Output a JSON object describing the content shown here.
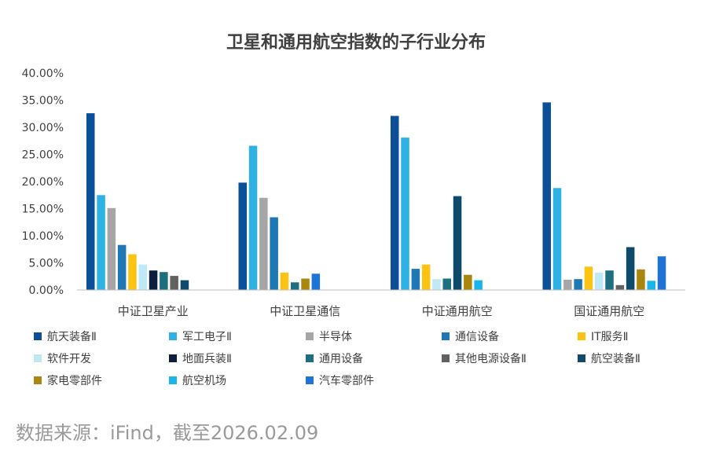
{
  "chart_data": {
    "type": "bar",
    "title": "卫星和通用航空指数的子行业分布",
    "ylim": [
      0,
      40
    ],
    "yticks": [
      "0.00%",
      "5.00%",
      "10.00%",
      "15.00%",
      "20.00%",
      "25.00%",
      "30.00%",
      "35.00%",
      "40.00%"
    ],
    "categories": [
      "中证卫星产业",
      "中证卫星通信",
      "中证通用航空",
      "国证通用航空"
    ],
    "series": [
      {
        "name": "航天装备Ⅱ",
        "color": "#0b4f99",
        "values": [
          32.6,
          19.8,
          32.1,
          34.6
        ]
      },
      {
        "name": "军工电子Ⅱ",
        "color": "#2db2e3",
        "values": [
          17.5,
          26.6,
          28.1,
          18.8
        ]
      },
      {
        "name": "半导体",
        "color": "#a6a6a6",
        "values": [
          15.1,
          17.0,
          null,
          1.9
        ]
      },
      {
        "name": "通信设备",
        "color": "#1f77b4",
        "values": [
          8.3,
          13.4,
          3.9,
          2.0
        ]
      },
      {
        "name": "IT服务Ⅱ",
        "color": "#fcc313",
        "values": [
          6.6,
          3.2,
          4.7,
          4.3
        ]
      },
      {
        "name": "软件开发",
        "color": "#bfe9f7",
        "values": [
          4.7,
          null,
          2.0,
          3.2
        ]
      },
      {
        "name": "地面兵装Ⅱ",
        "color": "#0d1f3f",
        "values": [
          3.6,
          null,
          null,
          null
        ]
      },
      {
        "name": "通用设备",
        "color": "#1b6f7f",
        "values": [
          3.3,
          1.4,
          2.1,
          3.6
        ]
      },
      {
        "name": "其他电源设备Ⅱ",
        "color": "#616161",
        "values": [
          2.6,
          null,
          null,
          0.9
        ]
      },
      {
        "name": "航空装备Ⅱ",
        "color": "#0e4a6b",
        "values": [
          1.8,
          null,
          17.3,
          7.9
        ]
      },
      {
        "name": "家电零部件",
        "color": "#a9860e",
        "values": [
          null,
          2.1,
          2.8,
          3.8
        ]
      },
      {
        "name": "航空机场",
        "color": "#19b6ec",
        "values": [
          null,
          null,
          1.8,
          1.7
        ]
      },
      {
        "name": "汽车零部件",
        "color": "#1e73d8",
        "values": [
          null,
          3.0,
          null,
          6.2
        ]
      }
    ],
    "grid": false,
    "legend": "bottom"
  },
  "source": "数据来源：iFind，截至2026.02.09"
}
